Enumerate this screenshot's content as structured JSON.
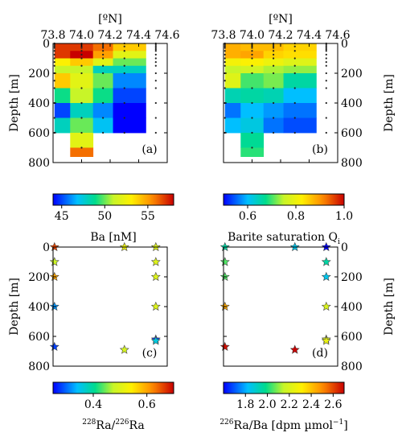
{
  "chart_data": [
    {
      "type": "heatmap",
      "panel_label": "(a)",
      "xlabel": "[ºN]",
      "ylabel": "Depth [m]",
      "xlim": [
        73.8,
        74.6
      ],
      "ylim": [
        800,
        0
      ],
      "xticks": [
        "73.8",
        "74.0",
        "74.2",
        "74.4",
        "74.6"
      ],
      "yticks": [
        "0",
        "200",
        "400",
        "600",
        "800"
      ],
      "colorbar": {
        "label": "Ba [nM]",
        "range": [
          44,
          58
        ],
        "ticks": [
          "45",
          "50",
          "55"
        ]
      },
      "cells": [
        {
          "lat": [
            73.81,
            73.92
          ],
          "depth": [
            0,
            100
          ],
          "value": 57
        },
        {
          "lat": [
            73.81,
            73.92
          ],
          "depth": [
            100,
            150
          ],
          "value": 53
        },
        {
          "lat": [
            73.81,
            73.92
          ],
          "depth": [
            150,
            200
          ],
          "value": 51
        },
        {
          "lat": [
            73.81,
            73.92
          ],
          "depth": [
            200,
            300
          ],
          "value": 54
        },
        {
          "lat": [
            73.81,
            73.92
          ],
          "depth": [
            300,
            400
          ],
          "value": 49
        },
        {
          "lat": [
            73.81,
            73.92
          ],
          "depth": [
            400,
            500
          ],
          "value": 45
        },
        {
          "lat": [
            73.81,
            73.92
          ],
          "depth": [
            500,
            600
          ],
          "value": 48
        },
        {
          "lat": [
            73.92,
            74.08
          ],
          "depth": [
            0,
            50
          ],
          "value": 57
        },
        {
          "lat": [
            73.92,
            74.08
          ],
          "depth": [
            50,
            100
          ],
          "value": 58
        },
        {
          "lat": [
            73.92,
            74.08
          ],
          "depth": [
            100,
            150
          ],
          "value": 54
        },
        {
          "lat": [
            73.92,
            74.08
          ],
          "depth": [
            150,
            200
          ],
          "value": 51
        },
        {
          "lat": [
            73.92,
            74.08
          ],
          "depth": [
            200,
            300
          ],
          "value": 52
        },
        {
          "lat": [
            73.92,
            74.08
          ],
          "depth": [
            300,
            400
          ],
          "value": 51
        },
        {
          "lat": [
            73.92,
            74.08
          ],
          "depth": [
            400,
            500
          ],
          "value": 48
        },
        {
          "lat": [
            73.92,
            74.08
          ],
          "depth": [
            500,
            600
          ],
          "value": 50
        },
        {
          "lat": [
            73.92,
            74.08
          ],
          "depth": [
            600,
            700
          ],
          "value": 52
        },
        {
          "lat": [
            73.92,
            74.08
          ],
          "depth": [
            700,
            760
          ],
          "value": 56
        },
        {
          "lat": [
            74.08,
            74.22
          ],
          "depth": [
            0,
            50
          ],
          "value": 56
        },
        {
          "lat": [
            74.08,
            74.22
          ],
          "depth": [
            50,
            100
          ],
          "value": 55
        },
        {
          "lat": [
            74.08,
            74.22
          ],
          "depth": [
            100,
            150
          ],
          "value": 52
        },
        {
          "lat": [
            74.08,
            74.22
          ],
          "depth": [
            150,
            200
          ],
          "value": 48
        },
        {
          "lat": [
            74.08,
            74.22
          ],
          "depth": [
            200,
            300
          ],
          "value": 50
        },
        {
          "lat": [
            74.08,
            74.22
          ],
          "depth": [
            300,
            400
          ],
          "value": 49
        },
        {
          "lat": [
            74.08,
            74.22
          ],
          "depth": [
            400,
            500
          ],
          "value": 46
        },
        {
          "lat": [
            74.08,
            74.22
          ],
          "depth": [
            500,
            600
          ],
          "value": 47
        },
        {
          "lat": [
            74.22,
            74.45
          ],
          "depth": [
            0,
            50
          ],
          "value": 54
        },
        {
          "lat": [
            74.22,
            74.45
          ],
          "depth": [
            50,
            100
          ],
          "value": 52
        },
        {
          "lat": [
            74.22,
            74.45
          ],
          "depth": [
            100,
            150
          ],
          "value": 50
        },
        {
          "lat": [
            74.22,
            74.45
          ],
          "depth": [
            150,
            200
          ],
          "value": 48
        },
        {
          "lat": [
            74.22,
            74.45
          ],
          "depth": [
            200,
            300
          ],
          "value": 46
        },
        {
          "lat": [
            74.22,
            74.45
          ],
          "depth": [
            300,
            400
          ],
          "value": 45
        },
        {
          "lat": [
            74.22,
            74.45
          ],
          "depth": [
            400,
            500
          ],
          "value": 44
        },
        {
          "lat": [
            74.22,
            74.45
          ],
          "depth": [
            500,
            600
          ],
          "value": 44
        }
      ],
      "samples": [
        {
          "lat": 73.81,
          "depths": [
            0,
            10,
            20,
            30,
            50,
            75,
            100,
            125,
            150,
            200,
            250,
            300,
            400,
            500,
            600
          ]
        },
        {
          "lat": 74.0,
          "depths": [
            0,
            10,
            20,
            30,
            50,
            75,
            100,
            150,
            200,
            300,
            400,
            500,
            600,
            700
          ]
        },
        {
          "lat": 74.15,
          "depths": [
            0,
            10,
            20,
            30,
            50,
            75,
            100,
            150,
            200,
            300,
            400,
            500,
            600
          ]
        },
        {
          "lat": 74.3,
          "depths": [
            0,
            20,
            50,
            100,
            150,
            200,
            300,
            400,
            500,
            600
          ]
        },
        {
          "lat": 74.52,
          "depths": [
            0,
            10,
            20,
            30,
            40,
            50,
            75,
            100,
            125,
            150,
            200,
            250,
            300,
            400,
            500,
            600
          ]
        }
      ]
    },
    {
      "type": "heatmap",
      "panel_label": "(b)",
      "xlabel": "[ºN]",
      "ylabel": "Depth [m]",
      "xlim": [
        73.8,
        74.6
      ],
      "ylim": [
        800,
        0
      ],
      "xticks": [
        "73.8",
        "74.0",
        "74.2",
        "74.4",
        "74.6"
      ],
      "yticks": [
        "0",
        "200",
        "400",
        "600",
        "800"
      ],
      "colorbar": {
        "label": "Barite saturation Q",
        "label_sub": "i",
        "range": [
          0.5,
          1.0
        ],
        "ticks": [
          "0.6",
          "0.8",
          "1.0"
        ]
      },
      "cells": [
        {
          "lat": [
            73.81,
            73.92
          ],
          "depth": [
            0,
            100
          ],
          "value": 0.88
        },
        {
          "lat": [
            73.81,
            73.92
          ],
          "depth": [
            100,
            150
          ],
          "value": 0.81
        },
        {
          "lat": [
            73.81,
            73.92
          ],
          "depth": [
            150,
            200
          ],
          "value": 0.75
        },
        {
          "lat": [
            73.81,
            73.92
          ],
          "depth": [
            200,
            300
          ],
          "value": 0.78
        },
        {
          "lat": [
            73.81,
            73.92
          ],
          "depth": [
            300,
            400
          ],
          "value": 0.65
        },
        {
          "lat": [
            73.81,
            73.92
          ],
          "depth": [
            400,
            500
          ],
          "value": 0.56
        },
        {
          "lat": [
            73.81,
            73.92
          ],
          "depth": [
            500,
            600
          ],
          "value": 0.6
        },
        {
          "lat": [
            73.92,
            74.08
          ],
          "depth": [
            0,
            50
          ],
          "value": 0.87
        },
        {
          "lat": [
            73.92,
            74.08
          ],
          "depth": [
            50,
            100
          ],
          "value": 0.89
        },
        {
          "lat": [
            73.92,
            74.08
          ],
          "depth": [
            100,
            150
          ],
          "value": 0.82
        },
        {
          "lat": [
            73.92,
            74.08
          ],
          "depth": [
            150,
            200
          ],
          "value": 0.76
        },
        {
          "lat": [
            73.92,
            74.08
          ],
          "depth": [
            200,
            300
          ],
          "value": 0.7
        },
        {
          "lat": [
            73.92,
            74.08
          ],
          "depth": [
            300,
            400
          ],
          "value": 0.66
        },
        {
          "lat": [
            73.92,
            74.08
          ],
          "depth": [
            400,
            500
          ],
          "value": 0.6
        },
        {
          "lat": [
            73.92,
            74.08
          ],
          "depth": [
            500,
            600
          ],
          "value": 0.62
        },
        {
          "lat": [
            73.92,
            74.08
          ],
          "depth": [
            600,
            700
          ],
          "value": 0.67
        },
        {
          "lat": [
            73.92,
            74.08
          ],
          "depth": [
            700,
            760
          ],
          "value": 0.69
        },
        {
          "lat": [
            74.08,
            74.22
          ],
          "depth": [
            0,
            50
          ],
          "value": 0.87
        },
        {
          "lat": [
            74.08,
            74.22
          ],
          "depth": [
            50,
            100
          ],
          "value": 0.85
        },
        {
          "lat": [
            74.08,
            74.22
          ],
          "depth": [
            100,
            150
          ],
          "value": 0.8
        },
        {
          "lat": [
            74.08,
            74.22
          ],
          "depth": [
            150,
            200
          ],
          "value": 0.74
        },
        {
          "lat": [
            74.08,
            74.22
          ],
          "depth": [
            200,
            300
          ],
          "value": 0.72
        },
        {
          "lat": [
            74.08,
            74.22
          ],
          "depth": [
            300,
            400
          ],
          "value": 0.65
        },
        {
          "lat": [
            74.08,
            74.22
          ],
          "depth": [
            400,
            500
          ],
          "value": 0.58
        },
        {
          "lat": [
            74.08,
            74.22
          ],
          "depth": [
            500,
            600
          ],
          "value": 0.56
        },
        {
          "lat": [
            74.22,
            74.45
          ],
          "depth": [
            0,
            50
          ],
          "value": 0.85
        },
        {
          "lat": [
            74.22,
            74.45
          ],
          "depth": [
            50,
            100
          ],
          "value": 0.84
        },
        {
          "lat": [
            74.22,
            74.45
          ],
          "depth": [
            100,
            150
          ],
          "value": 0.78
        },
        {
          "lat": [
            74.22,
            74.45
          ],
          "depth": [
            150,
            200
          ],
          "value": 0.73
        },
        {
          "lat": [
            74.22,
            74.45
          ],
          "depth": [
            200,
            300
          ],
          "value": 0.66
        },
        {
          "lat": [
            74.22,
            74.45
          ],
          "depth": [
            300,
            400
          ],
          "value": 0.6
        },
        {
          "lat": [
            74.22,
            74.45
          ],
          "depth": [
            400,
            500
          ],
          "value": 0.56
        },
        {
          "lat": [
            74.22,
            74.45
          ],
          "depth": [
            500,
            600
          ],
          "value": 0.54
        }
      ],
      "samples": [
        {
          "lat": 73.81,
          "depths": [
            0,
            10,
            20,
            30,
            50,
            75,
            100,
            125,
            150,
            200,
            250,
            300,
            400,
            500,
            600
          ]
        },
        {
          "lat": 74.0,
          "depths": [
            0,
            10,
            20,
            30,
            50,
            75,
            100,
            150,
            200,
            300,
            400,
            500,
            600,
            700
          ]
        },
        {
          "lat": 74.15,
          "depths": [
            0,
            10,
            20,
            30,
            50,
            75,
            100,
            150,
            200,
            300,
            400,
            500,
            600
          ]
        },
        {
          "lat": 74.3,
          "depths": [
            0,
            20,
            50,
            100,
            150,
            200,
            300,
            400,
            500,
            600
          ]
        },
        {
          "lat": 74.52,
          "depths": [
            0,
            10,
            20,
            30,
            40,
            50,
            75,
            100,
            125,
            150,
            200,
            250,
            300,
            400,
            500,
            600
          ]
        }
      ]
    },
    {
      "type": "scatter",
      "panel_label": "(c)",
      "ylabel": "Depth [m]",
      "xlim": [
        73.8,
        74.6
      ],
      "ylim": [
        800,
        0
      ],
      "yticks": [
        "0",
        "200",
        "400",
        "600",
        "800"
      ],
      "colorbar": {
        "label_sup1": "228",
        "label_mid": "Ra/",
        "label_sup2": "226",
        "label_end": "Ra",
        "range": [
          0.25,
          0.7
        ],
        "ticks": [
          "0.4",
          "0.6"
        ]
      },
      "points": [
        {
          "lat": 73.81,
          "depth": 0,
          "value": 0.66
        },
        {
          "lat": 73.81,
          "depth": 100,
          "value": 0.48
        },
        {
          "lat": 73.81,
          "depth": 200,
          "value": 0.6
        },
        {
          "lat": 73.81,
          "depth": 400,
          "value": 0.32
        },
        {
          "lat": 73.81,
          "depth": 670,
          "value": 0.28
        },
        {
          "lat": 74.3,
          "depth": 0,
          "value": 0.52
        },
        {
          "lat": 74.3,
          "depth": 690,
          "value": 0.49
        },
        {
          "lat": 74.52,
          "depth": 0,
          "value": 0.5
        },
        {
          "lat": 74.52,
          "depth": 100,
          "value": 0.5
        },
        {
          "lat": 74.52,
          "depth": 200,
          "value": 0.5
        },
        {
          "lat": 74.52,
          "depth": 400,
          "value": 0.5
        },
        {
          "lat": 74.52,
          "depth": 620,
          "value": 0.28
        },
        {
          "lat": 74.52,
          "depth": 630,
          "value": 0.36
        }
      ]
    },
    {
      "type": "scatter",
      "panel_label": "(d)",
      "ylabel": "Depth [m]",
      "xlim": [
        73.8,
        74.6
      ],
      "ylim": [
        800,
        0
      ],
      "yticks": [
        "0",
        "200",
        "400",
        "600",
        "800"
      ],
      "colorbar": {
        "label_sup1": "226",
        "label_mid": "Ra/Ba [dpm µmol",
        "label_sup2": "−1",
        "label_end": "]",
        "range": [
          1.6,
          2.7
        ],
        "ticks": [
          "1.8",
          "2.0",
          "2.2",
          "2.4",
          "2.6"
        ]
      },
      "points": [
        {
          "lat": 73.81,
          "depth": 0,
          "value": 1.95
        },
        {
          "lat": 73.81,
          "depth": 100,
          "value": 2.05
        },
        {
          "lat": 73.81,
          "depth": 200,
          "value": 2.05
        },
        {
          "lat": 73.81,
          "depth": 400,
          "value": 2.45
        },
        {
          "lat": 73.81,
          "depth": 670,
          "value": 2.68
        },
        {
          "lat": 74.3,
          "depth": 0,
          "value": 1.85
        },
        {
          "lat": 74.3,
          "depth": 690,
          "value": 2.72
        },
        {
          "lat": 74.52,
          "depth": 0,
          "value": 1.6
        },
        {
          "lat": 74.52,
          "depth": 100,
          "value": 1.95
        },
        {
          "lat": 74.52,
          "depth": 200,
          "value": 1.85
        },
        {
          "lat": 74.52,
          "depth": 400,
          "value": 2.2
        },
        {
          "lat": 74.52,
          "depth": 620,
          "value": 2.2
        },
        {
          "lat": 74.52,
          "depth": 630,
          "value": 2.25
        }
      ]
    }
  ]
}
